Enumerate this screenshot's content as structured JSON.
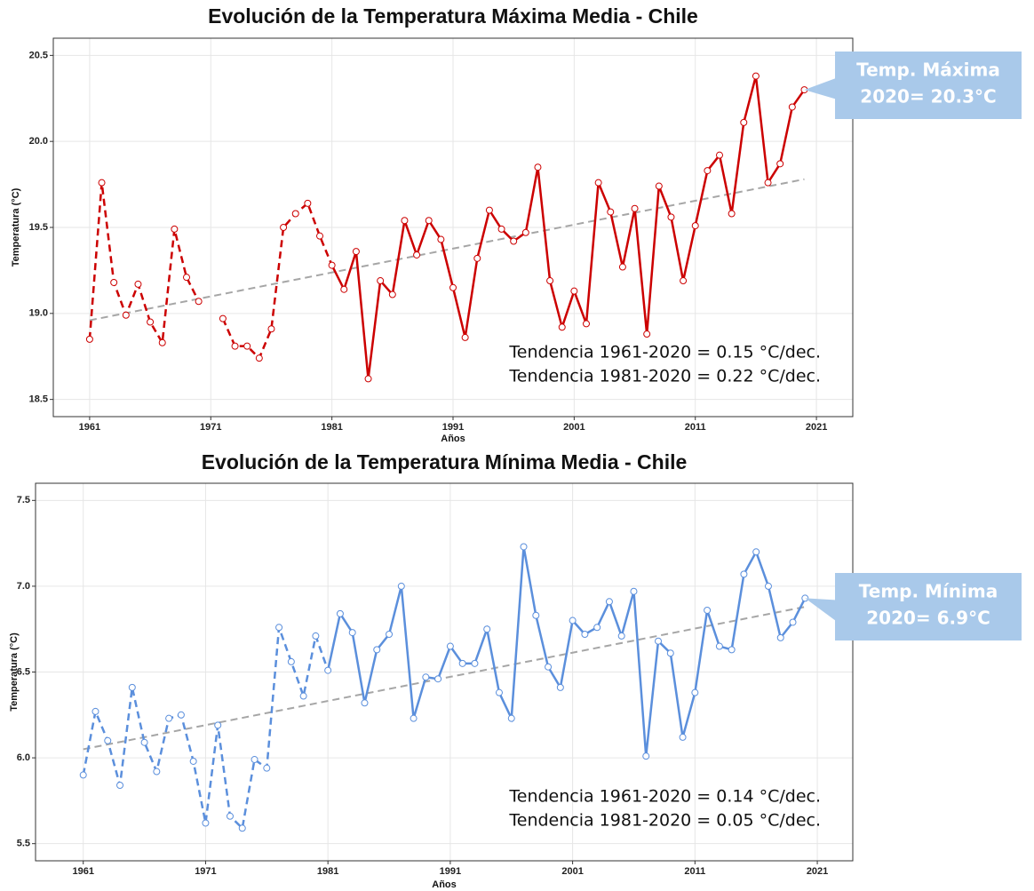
{
  "chart_data": [
    {
      "type": "line",
      "title": "Evolución de la Temperatura Máxima Media - Chile",
      "x_label": "Años",
      "y_label": "Temperatura (°C)",
      "x": [
        1961,
        1962,
        1963,
        1964,
        1965,
        1966,
        1967,
        1968,
        1969,
        1970,
        1971,
        1972,
        1973,
        1974,
        1975,
        1976,
        1977,
        1978,
        1979,
        1980,
        1981,
        1982,
        1983,
        1984,
        1985,
        1986,
        1987,
        1988,
        1989,
        1990,
        1991,
        1992,
        1993,
        1994,
        1995,
        1996,
        1997,
        1998,
        1999,
        2000,
        2001,
        2002,
        2003,
        2004,
        2005,
        2006,
        2007,
        2008,
        2009,
        2010,
        2011,
        2012,
        2013,
        2014,
        2015,
        2016,
        2017,
        2018,
        2019,
        2020
      ],
      "series": [
        {
          "color": "#cc0000",
          "dashed_through": 1981,
          "values": [
            18.85,
            19.76,
            19.18,
            18.99,
            19.17,
            18.95,
            18.83,
            19.49,
            19.21,
            19.07,
            null,
            18.97,
            18.81,
            18.81,
            18.74,
            18.91,
            19.5,
            19.58,
            19.64,
            19.45,
            19.28,
            19.14,
            19.36,
            18.62,
            19.19,
            19.11,
            19.54,
            19.34,
            19.54,
            19.43,
            19.15,
            18.86,
            19.32,
            19.6,
            19.49,
            19.42,
            19.47,
            19.85,
            19.19,
            18.92,
            19.13,
            18.94,
            19.76,
            19.59,
            19.27,
            19.61,
            18.88,
            19.74,
            19.56,
            19.19,
            19.51,
            19.83,
            19.92,
            19.58,
            20.11,
            20.38,
            19.76,
            19.87,
            20.2,
            20.3
          ]
        }
      ],
      "trend": {
        "color": "#a6a6a6",
        "x": [
          1961,
          2020
        ],
        "values": [
          18.96,
          19.78
        ]
      },
      "xlim": [
        1958,
        2024
      ],
      "xticks": [
        1961,
        1971,
        1981,
        1991,
        2001,
        2011,
        2021
      ],
      "ylim": [
        18.4,
        20.6
      ],
      "yticks": [
        18.5,
        {
          "value": 19,
          "label": "19.0"
        },
        19.5,
        {
          "value": 20,
          "label": "20.0"
        },
        20.5
      ],
      "grid": true,
      "trend_notes": [
        "Tendencia 1961-2020 = 0.15 °C/dec.",
        "Tendencia 1981-2020 = 0.22 °C/dec."
      ],
      "callout": {
        "color": "#a9c9ea",
        "lines": [
          "Temp. Máxima",
          "2020= 20.3°C"
        ]
      }
    },
    {
      "type": "line",
      "title": "Evolución de la Temperatura Mínima Media - Chile",
      "x_label": "Años",
      "y_label": "Temperatura (°C)",
      "x": [
        1961,
        1962,
        1963,
        1964,
        1965,
        1966,
        1967,
        1968,
        1969,
        1970,
        1971,
        1972,
        1973,
        1974,
        1975,
        1976,
        1977,
        1978,
        1979,
        1980,
        1981,
        1982,
        1983,
        1984,
        1985,
        1986,
        1987,
        1988,
        1989,
        1990,
        1991,
        1992,
        1993,
        1994,
        1995,
        1996,
        1997,
        1998,
        1999,
        2000,
        2001,
        2002,
        2003,
        2004,
        2005,
        2006,
        2007,
        2008,
        2009,
        2010,
        2011,
        2012,
        2013,
        2014,
        2015,
        2016,
        2017,
        2018,
        2019,
        2020
      ],
      "series": [
        {
          "color": "#5b8fdc",
          "dashed_through": 1981,
          "values": [
            5.9,
            6.27,
            6.1,
            5.84,
            6.41,
            6.09,
            5.92,
            6.23,
            6.25,
            5.98,
            5.62,
            6.19,
            5.66,
            5.59,
            5.99,
            5.94,
            6.76,
            6.56,
            6.36,
            6.71,
            6.51,
            6.84,
            6.73,
            6.32,
            6.63,
            6.72,
            7.0,
            6.23,
            6.47,
            6.46,
            6.65,
            6.55,
            6.55,
            6.75,
            6.38,
            6.23,
            7.23,
            6.83,
            6.53,
            6.41,
            6.8,
            6.72,
            6.76,
            6.91,
            6.71,
            6.97,
            6.01,
            6.68,
            6.61,
            6.12,
            6.38,
            6.86,
            6.65,
            6.63,
            7.07,
            7.2,
            7.0,
            6.7,
            6.79,
            6.93
          ]
        }
      ],
      "trend": {
        "color": "#a6a6a6",
        "x": [
          1961,
          2020
        ],
        "values": [
          6.05,
          6.88
        ]
      },
      "xlim": [
        1957.1,
        2023.9
      ],
      "xticks": [
        1961,
        1971,
        1981,
        1991,
        2001,
        2011,
        2021
      ],
      "ylim": [
        5.4,
        7.6
      ],
      "yticks": [
        5.5,
        {
          "value": 6,
          "label": "6.0"
        },
        6.5,
        {
          "value": 7,
          "label": "7.0"
        },
        7.5
      ],
      "grid": true,
      "trend_notes": [
        "Tendencia 1961-2020 = 0.14 °C/dec.",
        "Tendencia 1981-2020 = 0.05 °C/dec."
      ],
      "callout": {
        "color": "#a9c9ea",
        "lines": [
          "Temp. Mínima",
          "2020= 6.9°C"
        ]
      }
    }
  ]
}
